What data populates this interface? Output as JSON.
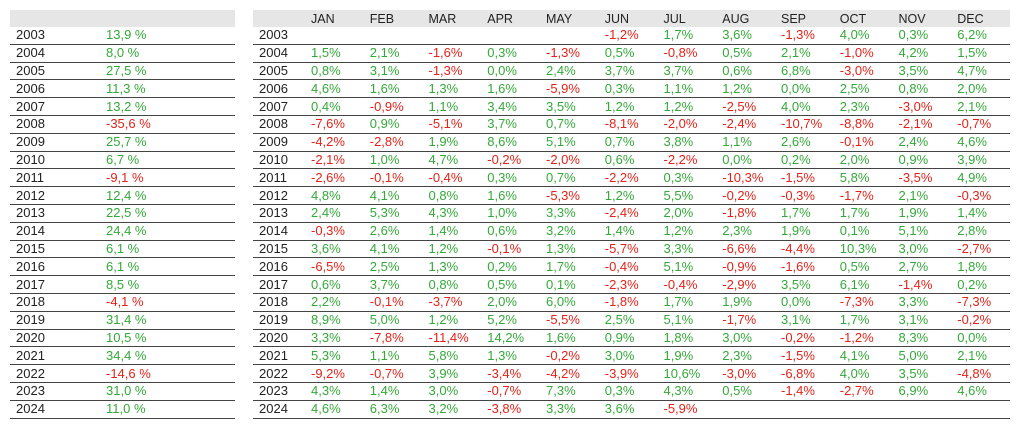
{
  "colors": {
    "positive": "#35a83a",
    "negative": "#e2231a"
  },
  "yearly": {
    "rows": [
      [
        "2003",
        "13,9 %"
      ],
      [
        "2004",
        "8,0 %"
      ],
      [
        "2005",
        "27,5 %"
      ],
      [
        "2006",
        "11,3 %"
      ],
      [
        "2007",
        "13,2 %"
      ],
      [
        "2008",
        "-35,6 %"
      ],
      [
        "2009",
        "25,7 %"
      ],
      [
        "2010",
        "6,7 %"
      ],
      [
        "2011",
        "-9,1 %"
      ],
      [
        "2012",
        "12,4 %"
      ],
      [
        "2013",
        "22,5 %"
      ],
      [
        "2014",
        "24,4 %"
      ],
      [
        "2015",
        "6,1 %"
      ],
      [
        "2016",
        "6,1 %"
      ],
      [
        "2017",
        "8,5 %"
      ],
      [
        "2018",
        "-4,1 %"
      ],
      [
        "2019",
        "31,4 %"
      ],
      [
        "2020",
        "10,5 %"
      ],
      [
        "2021",
        "34,4 %"
      ],
      [
        "2022",
        "-14,6 %"
      ],
      [
        "2023",
        "31,0 %"
      ],
      [
        "2024",
        "11,0 %"
      ]
    ]
  },
  "monthly": {
    "header": [
      "JAN",
      "FEB",
      "MAR",
      "APR",
      "MAY",
      "JUN",
      "JUL",
      "AUG",
      "SEP",
      "OCT",
      "NOV",
      "DEC"
    ],
    "rows": [
      [
        "2003",
        null,
        null,
        null,
        null,
        null,
        "-1,2%",
        "1,7%",
        "3,6%",
        "-1,3%",
        "4,0%",
        "0,3%",
        "6,2%"
      ],
      [
        "2004",
        "1,5%",
        "2,1%",
        "-1,6%",
        "0,3%",
        "-1,3%",
        "0,5%",
        "-0,8%",
        "0,5%",
        "2,1%",
        "-1,0%",
        "4,2%",
        "1,5%"
      ],
      [
        "2005",
        "0,8%",
        "3,1%",
        "-1,3%",
        "0,0%",
        "2,4%",
        "3,7%",
        "3,7%",
        "0,6%",
        "6,8%",
        "-3,0%",
        "3,5%",
        "4,7%"
      ],
      [
        "2006",
        "4,6%",
        "1,6%",
        "1,3%",
        "1,6%",
        "-5,9%",
        "0,3%",
        "1,1%",
        "1,2%",
        "0,0%",
        "2,5%",
        "0,8%",
        "2,0%"
      ],
      [
        "2007",
        "0,4%",
        "-0,9%",
        "1,1%",
        "3,4%",
        "3,5%",
        "1,2%",
        "1,2%",
        "-2,5%",
        "4,0%",
        "2,3%",
        "-3,0%",
        "2,1%"
      ],
      [
        "2008",
        "-7,6%",
        "0,9%",
        "-5,1%",
        "3,7%",
        "0,7%",
        "-8,1%",
        "-2,0%",
        "-2,4%",
        "-10,7%",
        "-8,8%",
        "-2,1%",
        "-0,7%"
      ],
      [
        "2009",
        "-4,2%",
        "-2,8%",
        "1,9%",
        "8,6%",
        "5,1%",
        "0,7%",
        "3,8%",
        "1,1%",
        "2,6%",
        "-0,1%",
        "2,4%",
        "4,6%"
      ],
      [
        "2010",
        "-2,1%",
        "1,0%",
        "4,7%",
        "-0,2%",
        "-2,0%",
        "0,6%",
        "-2,2%",
        "0,0%",
        "0,2%",
        "2,0%",
        "0,9%",
        "3,9%"
      ],
      [
        "2011",
        "-2,6%",
        "-0,1%",
        "-0,4%",
        "0,3%",
        "0,7%",
        "-2,2%",
        "0,3%",
        "-10,3%",
        "-1,5%",
        "5,8%",
        "-3,5%",
        "4,9%"
      ],
      [
        "2012",
        "4,8%",
        "4,1%",
        "0,8%",
        "1,6%",
        "-5,3%",
        "1,2%",
        "5,5%",
        "-0,2%",
        "-0,3%",
        "-1,7%",
        "2,1%",
        "-0,3%"
      ],
      [
        "2013",
        "2,4%",
        "5,3%",
        "4,3%",
        "1,0%",
        "3,3%",
        "-2,4%",
        "2,0%",
        "-1,8%",
        "1,7%",
        "1,7%",
        "1,9%",
        "1,4%"
      ],
      [
        "2014",
        "-0,3%",
        "2,6%",
        "1,4%",
        "0,6%",
        "3,2%",
        "1,4%",
        "1,2%",
        "2,3%",
        "1,9%",
        "0,1%",
        "5,1%",
        "2,8%"
      ],
      [
        "2015",
        "3,6%",
        "4,1%",
        "1,2%",
        "-0,1%",
        "1,3%",
        "-5,7%",
        "3,3%",
        "-6,6%",
        "-4,4%",
        "10,3%",
        "3,0%",
        "-2,7%"
      ],
      [
        "2016",
        "-6,5%",
        "2,5%",
        "1,3%",
        "0,2%",
        "1,7%",
        "-0,4%",
        "5,1%",
        "-0,9%",
        "-1,6%",
        "0,5%",
        "2,7%",
        "1,8%"
      ],
      [
        "2017",
        "0,6%",
        "3,7%",
        "0,8%",
        "0,5%",
        "0,1%",
        "-2,3%",
        "-0,4%",
        "-2,9%",
        "3,5%",
        "6,1%",
        "-1,4%",
        "0,2%"
      ],
      [
        "2018",
        "2,2%",
        "-0,1%",
        "-3,7%",
        "2,0%",
        "6,0%",
        "-1,8%",
        "1,7%",
        "1,9%",
        "0,0%",
        "-7,3%",
        "3,3%",
        "-7,3%"
      ],
      [
        "2019",
        "8,9%",
        "5,0%",
        "1,2%",
        "5,2%",
        "-5,5%",
        "2,5%",
        "5,1%",
        "-1,7%",
        "3,1%",
        "1,7%",
        "3,1%",
        "-0,2%"
      ],
      [
        "2020",
        "3,3%",
        "-7,8%",
        "-11,4%",
        "14,2%",
        "1,6%",
        "0,9%",
        "1,8%",
        "3,0%",
        "-0,2%",
        "-1,2%",
        "8,3%",
        "0,0%"
      ],
      [
        "2021",
        "5,3%",
        "1,1%",
        "5,8%",
        "1,3%",
        "-0,2%",
        "3,0%",
        "1,9%",
        "2,3%",
        "-1,5%",
        "4,1%",
        "5,0%",
        "2,1%"
      ],
      [
        "2022",
        "-9,2%",
        "-0,7%",
        "3,9%",
        "-3,4%",
        "-4,2%",
        "-3,9%",
        "10,6%",
        "-3,0%",
        "-6,8%",
        "4,0%",
        "3,5%",
        "-4,8%"
      ],
      [
        "2023",
        "4,3%",
        "1,4%",
        "3,0%",
        "-0,7%",
        "7,3%",
        "0,3%",
        "4,3%",
        "0,5%",
        "-1,4%",
        "-2,7%",
        "6,9%",
        "4,6%"
      ],
      [
        "2024",
        "4,6%",
        "6,3%",
        "3,2%",
        "-3,8%",
        "3,3%",
        "3,6%",
        "-5,9%",
        null,
        null,
        null,
        null,
        null
      ]
    ]
  }
}
